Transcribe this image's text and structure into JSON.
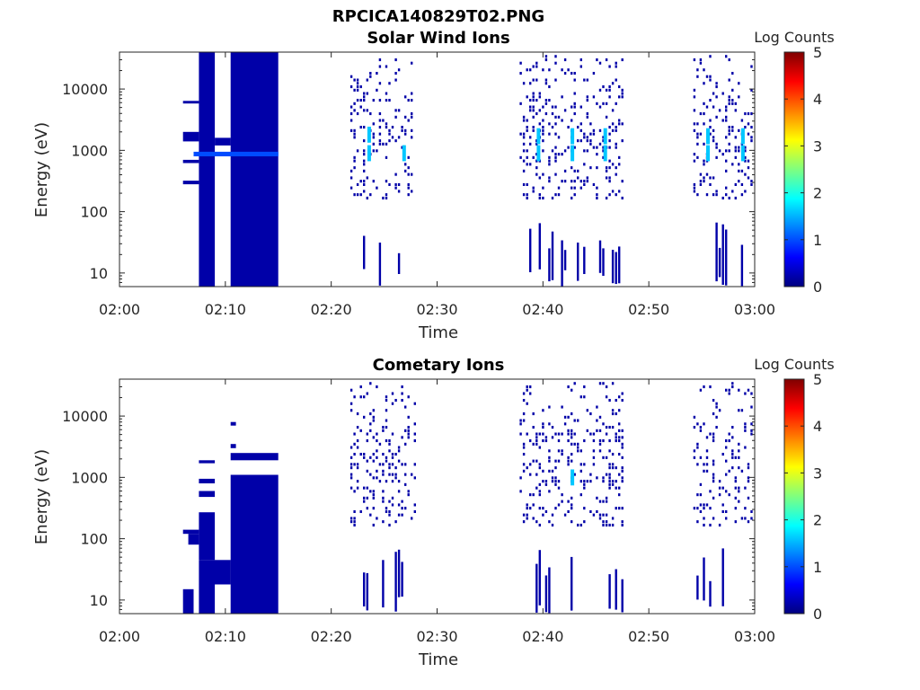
{
  "figure_title": "RPCICA140829T02.PNG",
  "colormap": [
    "#00007f",
    "#0000ff",
    "#007fff",
    "#00ffff",
    "#7fff7f",
    "#ffff00",
    "#ff7f00",
    "#ff0000",
    "#7f0000"
  ],
  "background": "#ffffff",
  "chart_data": [
    {
      "type": "heatmap",
      "title": "Solar Wind Ions",
      "xlabel": "Time",
      "ylabel": "Energy (eV)",
      "x_ticks": [
        "02:00",
        "02:10",
        "02:20",
        "02:30",
        "02:40",
        "02:50",
        "03:00"
      ],
      "xlim_minutes": [
        0,
        60
      ],
      "y_scale": "log",
      "y_ticks": [
        "10",
        "100",
        "1000",
        "10000"
      ],
      "ylim": [
        6,
        40000
      ],
      "colorbar": {
        "label": "Log Counts",
        "range": [
          0,
          5
        ],
        "ticks": [
          "0",
          "1",
          "2",
          "3",
          "4",
          "5"
        ]
      },
      "blocks": [
        {
          "t": [
            7.5,
            9.0
          ],
          "e": [
            6,
            40000
          ],
          "c": 0.2
        },
        {
          "t": [
            10.5,
            15.0
          ],
          "e": [
            6,
            40000
          ],
          "c": 0.2
        },
        {
          "t": [
            6.0,
            7.5
          ],
          "e": [
            280,
            320
          ],
          "c": 0.2
        },
        {
          "t": [
            6.0,
            7.5
          ],
          "e": [
            620,
            700
          ],
          "c": 0.2
        },
        {
          "t": [
            6.0,
            7.5
          ],
          "e": [
            1400,
            2000
          ],
          "c": 0.2
        },
        {
          "t": [
            6.0,
            7.5
          ],
          "e": [
            5800,
            6400
          ],
          "c": 0.2
        },
        {
          "t": [
            9.0,
            10.5
          ],
          "e": [
            1200,
            1600
          ],
          "c": 0.2
        },
        {
          "t": [
            7.0,
            15.0
          ],
          "e": [
            800,
            950
          ],
          "c": 1.0
        }
      ],
      "bursts": [
        {
          "start": 21.8,
          "end": 27.8,
          "seed": 11,
          "hotspots": [
            [
              23.5,
              900
            ],
            [
              23.5,
              1800
            ],
            [
              26.8,
              900
            ]
          ]
        },
        {
          "start": 37.8,
          "end": 47.4,
          "seed": 23,
          "hotspots": [
            [
              39.5,
              900
            ],
            [
              39.5,
              1700
            ],
            [
              42.7,
              900
            ],
            [
              42.7,
              1700
            ],
            [
              45.8,
              900
            ],
            [
              45.8,
              1700
            ]
          ]
        },
        {
          "start": 54.2,
          "end": 59.6,
          "seed": 37,
          "hotspots": [
            [
              55.5,
              900
            ],
            [
              55.5,
              1700
            ],
            [
              58.8,
              900
            ],
            [
              58.8,
              1700
            ]
          ]
        }
      ]
    },
    {
      "type": "heatmap",
      "title": "Cometary Ions",
      "xlabel": "Time",
      "ylabel": "Energy (eV)",
      "x_ticks": [
        "02:00",
        "02:10",
        "02:20",
        "02:30",
        "02:40",
        "02:50",
        "03:00"
      ],
      "xlim_minutes": [
        0,
        60
      ],
      "y_scale": "log",
      "y_ticks": [
        "10",
        "100",
        "1000",
        "10000"
      ],
      "ylim": [
        6,
        40000
      ],
      "colorbar": {
        "label": "Log Counts",
        "range": [
          0,
          5
        ],
        "ticks": [
          "0",
          "1",
          "2",
          "3",
          "4",
          "5"
        ]
      },
      "blocks": [
        {
          "t": [
            10.5,
            15.0
          ],
          "e": [
            6,
            1100
          ],
          "c": 0.2
        },
        {
          "t": [
            10.5,
            15.0
          ],
          "e": [
            1900,
            2500
          ],
          "c": 0.2
        },
        {
          "t": [
            7.5,
            10.5
          ],
          "e": [
            18,
            45
          ],
          "c": 0.2
        },
        {
          "t": [
            7.5,
            9.0
          ],
          "e": [
            6,
            18
          ],
          "c": 0.2
        },
        {
          "t": [
            7.5,
            9.0
          ],
          "e": [
            45,
            270
          ],
          "c": 0.2
        },
        {
          "t": [
            7.5,
            9.0
          ],
          "e": [
            480,
            600
          ],
          "c": 0.2
        },
        {
          "t": [
            7.5,
            9.0
          ],
          "e": [
            800,
            950
          ],
          "c": 0.2
        },
        {
          "t": [
            7.5,
            9.0
          ],
          "e": [
            1700,
            1900
          ],
          "c": 0.2
        },
        {
          "t": [
            6.0,
            7.0
          ],
          "e": [
            6,
            15
          ],
          "c": 0.2
        },
        {
          "t": [
            6.0,
            7.5
          ],
          "e": [
            120,
            140
          ],
          "c": 0.2
        },
        {
          "t": [
            6.5,
            7.5
          ],
          "e": [
            80,
            120
          ],
          "c": 0.2
        },
        {
          "t": [
            10.5,
            11.0
          ],
          "e": [
            3000,
            3500
          ],
          "c": 0.2
        },
        {
          "t": [
            10.5,
            11.0
          ],
          "e": [
            7000,
            8000
          ],
          "c": 0.2
        }
      ],
      "bursts": [
        {
          "start": 21.8,
          "end": 28.0,
          "seed": 53,
          "hotspots": []
        },
        {
          "start": 37.8,
          "end": 47.4,
          "seed": 71,
          "hotspots": [
            [
              42.7,
              1000
            ]
          ]
        },
        {
          "start": 54.2,
          "end": 59.8,
          "seed": 89,
          "hotspots": []
        }
      ]
    }
  ]
}
